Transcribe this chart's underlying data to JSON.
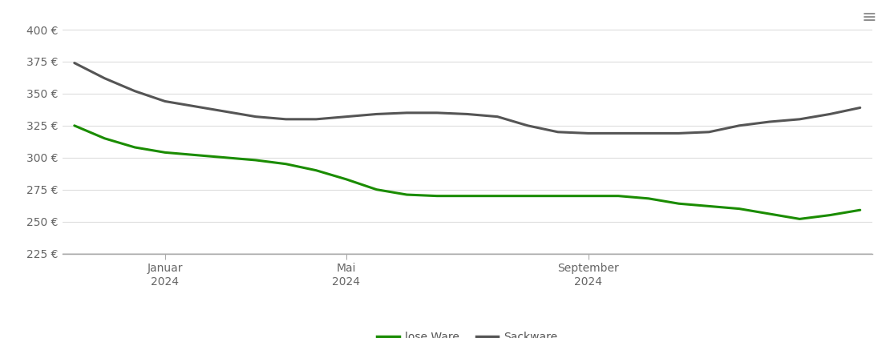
{
  "lose_ware_x": [
    0,
    0.5,
    1.0,
    1.5,
    2.0,
    2.5,
    3.0,
    3.5,
    4.0,
    4.5,
    5.0,
    5.5,
    6.0,
    6.5,
    7.0,
    7.5,
    8.0,
    8.5,
    9.0,
    9.5,
    10.0,
    10.5,
    11.0,
    11.5,
    12.0,
    12.5,
    13.0
  ],
  "lose_ware_y": [
    325,
    315,
    308,
    304,
    302,
    300,
    298,
    295,
    290,
    283,
    275,
    271,
    270,
    270,
    270,
    270,
    270,
    270,
    270,
    268,
    264,
    262,
    260,
    256,
    252,
    255,
    259
  ],
  "sackware_x": [
    0,
    0.5,
    1.0,
    1.5,
    2.0,
    2.5,
    3.0,
    3.5,
    4.0,
    4.5,
    5.0,
    5.5,
    6.0,
    6.5,
    7.0,
    7.5,
    8.0,
    8.5,
    9.0,
    9.5,
    10.0,
    10.5,
    11.0,
    11.5,
    12.0,
    12.5,
    13.0
  ],
  "sackware_y": [
    374,
    362,
    352,
    344,
    340,
    336,
    332,
    330,
    330,
    332,
    334,
    335,
    335,
    334,
    332,
    325,
    320,
    319,
    319,
    319,
    319,
    320,
    325,
    328,
    330,
    334,
    339
  ],
  "lose_ware_color": "#1a8c00",
  "sackware_color": "#555555",
  "background_color": "#ffffff",
  "grid_color": "#dddddd",
  "ylim": [
    225,
    410
  ],
  "yticks": [
    225,
    250,
    275,
    300,
    325,
    350,
    375,
    400
  ],
  "ytick_labels": [
    "225 €",
    "250 €",
    "275 €",
    "300 €",
    "325 €",
    "350 €",
    "375 €",
    "400 €"
  ],
  "xtick_positions": [
    1.5,
    4.5,
    8.5
  ],
  "xtick_labels_line1": [
    "Januar",
    "Mai",
    "September"
  ],
  "xtick_labels_line2": [
    "2024",
    "2024",
    "2024"
  ],
  "legend_labels": [
    "lose Ware",
    "Sackware"
  ],
  "legend_colors": [
    "#1a8c00",
    "#555555"
  ],
  "line_width": 2.2,
  "axes_color": "#aaaaaa"
}
